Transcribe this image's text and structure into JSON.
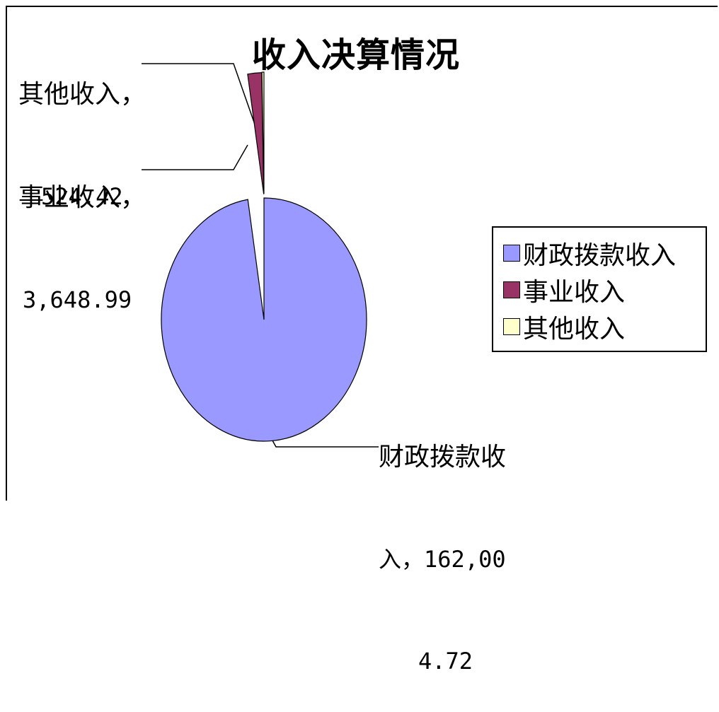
{
  "chart_data": {
    "type": "pie",
    "title": "收入决算情况",
    "categories": [
      "财政拨款收入",
      "事业收入",
      "其他收入"
    ],
    "values": [
      162004.72,
      3648.99,
      524.42
    ],
    "colors": [
      "#9999ff",
      "#993366",
      "#ffffcc"
    ],
    "legend_position": "right",
    "data_labels": [
      {
        "line1": "财政拨款收",
        "line2": "入，162,00",
        "line3": "4.72"
      },
      {
        "line1": "事业收入，",
        "line2": "3,648.99"
      },
      {
        "line1": "其他收入，",
        "line2": "524.42"
      }
    ],
    "legend": [
      {
        "label": "财政拨款收入",
        "color": "#9999ff"
      },
      {
        "label": "事业收入",
        "color": "#993366"
      },
      {
        "label": "其他收入",
        "color": "#ffffcc"
      }
    ]
  }
}
